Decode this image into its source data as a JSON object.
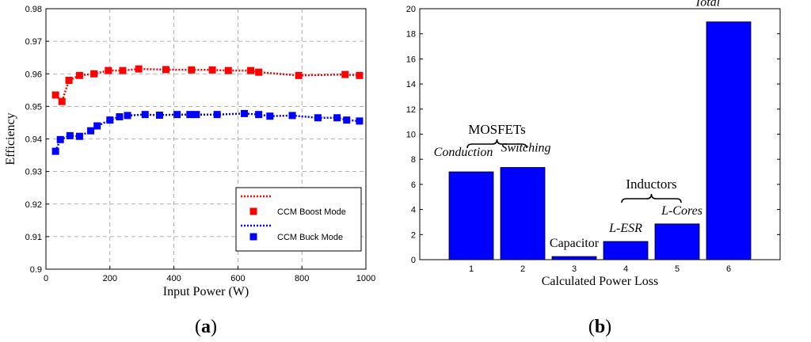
{
  "chart_data": [
    {
      "type": "line",
      "panel_label": "a",
      "title": "",
      "xlabel": "Input Power (W)",
      "ylabel": "Efficiency",
      "xlim": [
        0,
        1000
      ],
      "ylim": [
        0.9,
        0.98
      ],
      "xticks": [
        "0",
        "200",
        "400",
        "600",
        "800",
        "1000"
      ],
      "yticks": [
        "0.9",
        "0.91",
        "0.92",
        "0.93",
        "0.94",
        "0.95",
        "0.96",
        "0.97",
        "0.98"
      ],
      "grid": true,
      "legend_position": "bottom-right",
      "series": [
        {
          "name": "CCM Boost Mode",
          "color": "#ff0000",
          "x": [
            30,
            50,
            72,
            105,
            150,
            195,
            240,
            290,
            375,
            455,
            520,
            570,
            640,
            665,
            790,
            935,
            980
          ],
          "y": [
            0.9535,
            0.9515,
            0.958,
            0.9595,
            0.96,
            0.961,
            0.961,
            0.9615,
            0.9613,
            0.9612,
            0.9612,
            0.961,
            0.961,
            0.9605,
            0.9595,
            0.9598,
            0.9595
          ]
        },
        {
          "name": "CCM Buck Mode",
          "color": "#0000ff",
          "x": [
            30,
            45,
            75,
            105,
            140,
            160,
            200,
            230,
            255,
            310,
            355,
            410,
            450,
            470,
            535,
            620,
            665,
            700,
            770,
            850,
            910,
            940,
            980
          ],
          "y": [
            0.9362,
            0.9398,
            0.941,
            0.9408,
            0.9425,
            0.944,
            0.9458,
            0.9468,
            0.9472,
            0.9475,
            0.9473,
            0.9475,
            0.9475,
            0.9475,
            0.9475,
            0.9478,
            0.9475,
            0.947,
            0.9472,
            0.9465,
            0.9465,
            0.9458,
            0.9455
          ]
        }
      ]
    },
    {
      "type": "bar",
      "panel_label": "b",
      "title": "",
      "xlabel": "Calculated Power Loss",
      "ylabel": "",
      "ylim": [
        0,
        20
      ],
      "yticks": [
        "0",
        "2",
        "4",
        "6",
        "8",
        "10",
        "12",
        "14",
        "16",
        "18",
        "20"
      ],
      "categories": [
        "1",
        "2",
        "3",
        "4",
        "5",
        "6"
      ],
      "bar_color": "#0000ff",
      "values": [
        7.0,
        7.35,
        0.25,
        1.45,
        2.85,
        18.95
      ],
      "bar_labels": [
        "Conduction",
        "Switching",
        "Capacitor",
        "L-ESR",
        "L-Cores",
        "Total"
      ],
      "group_labels": [
        {
          "text": "MOSFETs",
          "bars": [
            1,
            2
          ]
        },
        {
          "text": "Inductors",
          "bars": [
            4,
            5
          ]
        }
      ]
    }
  ]
}
